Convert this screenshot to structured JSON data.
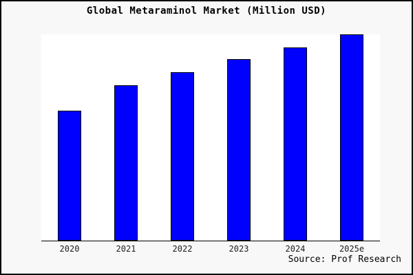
{
  "meta": {
    "source_credit": "Source: Prof Research"
  },
  "colors": {
    "bar_fill": "#0000ff",
    "bar_border": "#000000",
    "figure_background": "#f8f8f8",
    "plot_background": "#ffffff",
    "axis_line": "#000000",
    "frame_border": "#000000",
    "title_color": "#000000",
    "tick_label_color": "#1c1c1c"
  },
  "chart_data": {
    "type": "bar",
    "title": "Global Metaraminol Market (Million USD)",
    "categories": [
      "2020",
      "2021",
      "2022",
      "2023",
      "2024",
      "2025e"
    ],
    "values": [
      63,
      75.3,
      81.7,
      88,
      93.7,
      100
    ],
    "xlabel": "",
    "ylabel": "",
    "ylim": [
      0,
      100
    ],
    "y_axis_visible": false,
    "grid": false,
    "legend": false,
    "annotations": [
      "Source: Prof Research"
    ],
    "value_note": "relative heights estimated from pixels; no y-axis scale shown, tallest bar (2025e) = 100"
  }
}
